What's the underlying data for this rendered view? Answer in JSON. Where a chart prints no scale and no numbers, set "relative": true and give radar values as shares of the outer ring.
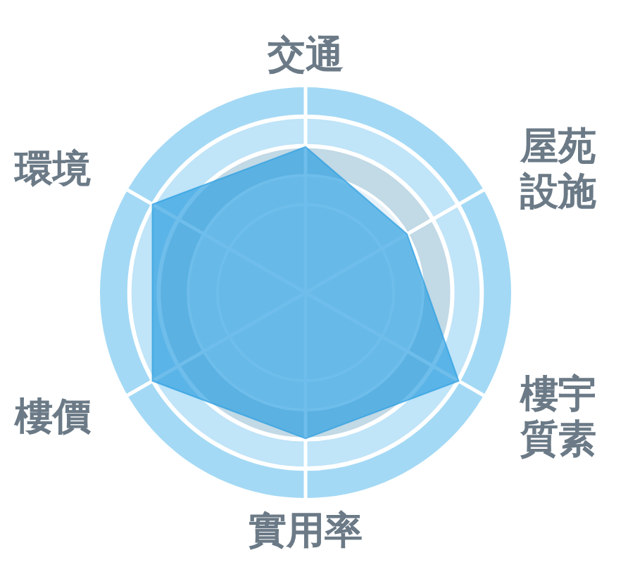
{
  "chart_data": {
    "type": "radar",
    "categories": [
      "交通",
      "屋苑設施",
      "樓宇質素",
      "實用率",
      "樓價",
      "環境"
    ],
    "series": [
      {
        "color": "#2a9ee0",
        "values": [
          0.71,
          0.57,
          0.86,
          0.71,
          0.86,
          0.86
        ]
      }
    ],
    "relative": true,
    "grid": true
  }
}
